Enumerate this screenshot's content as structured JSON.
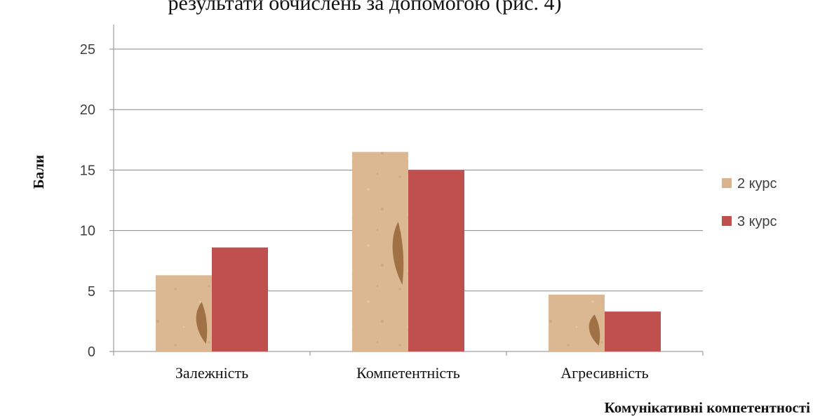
{
  "clipped_heading": "результати обчислень за допомогою (рис. 4)",
  "chart_data": {
    "type": "bar",
    "title": "",
    "xlabel": "Комунікативні компетентності",
    "ylabel": "Бали",
    "categories": [
      "Залежність",
      "Компетентність",
      "Агресивність"
    ],
    "series": [
      {
        "name": "2 курс",
        "values": [
          6.3,
          16.5,
          4.7
        ]
      },
      {
        "name": "3 курс",
        "values": [
          8.6,
          15.0,
          3.3
        ]
      }
    ],
    "ylim": [
      0,
      25
    ],
    "yticks": [
      "0",
      "5",
      "10",
      "15",
      "20",
      "25"
    ],
    "grid": true,
    "legend_position": "right",
    "colors": {
      "series_1": "#d9b38c",
      "series_1_texture": "#c9a47a",
      "series_2": "#c0504d",
      "gridline": "#8a8a8a",
      "axis": "#8a8a8a"
    }
  }
}
